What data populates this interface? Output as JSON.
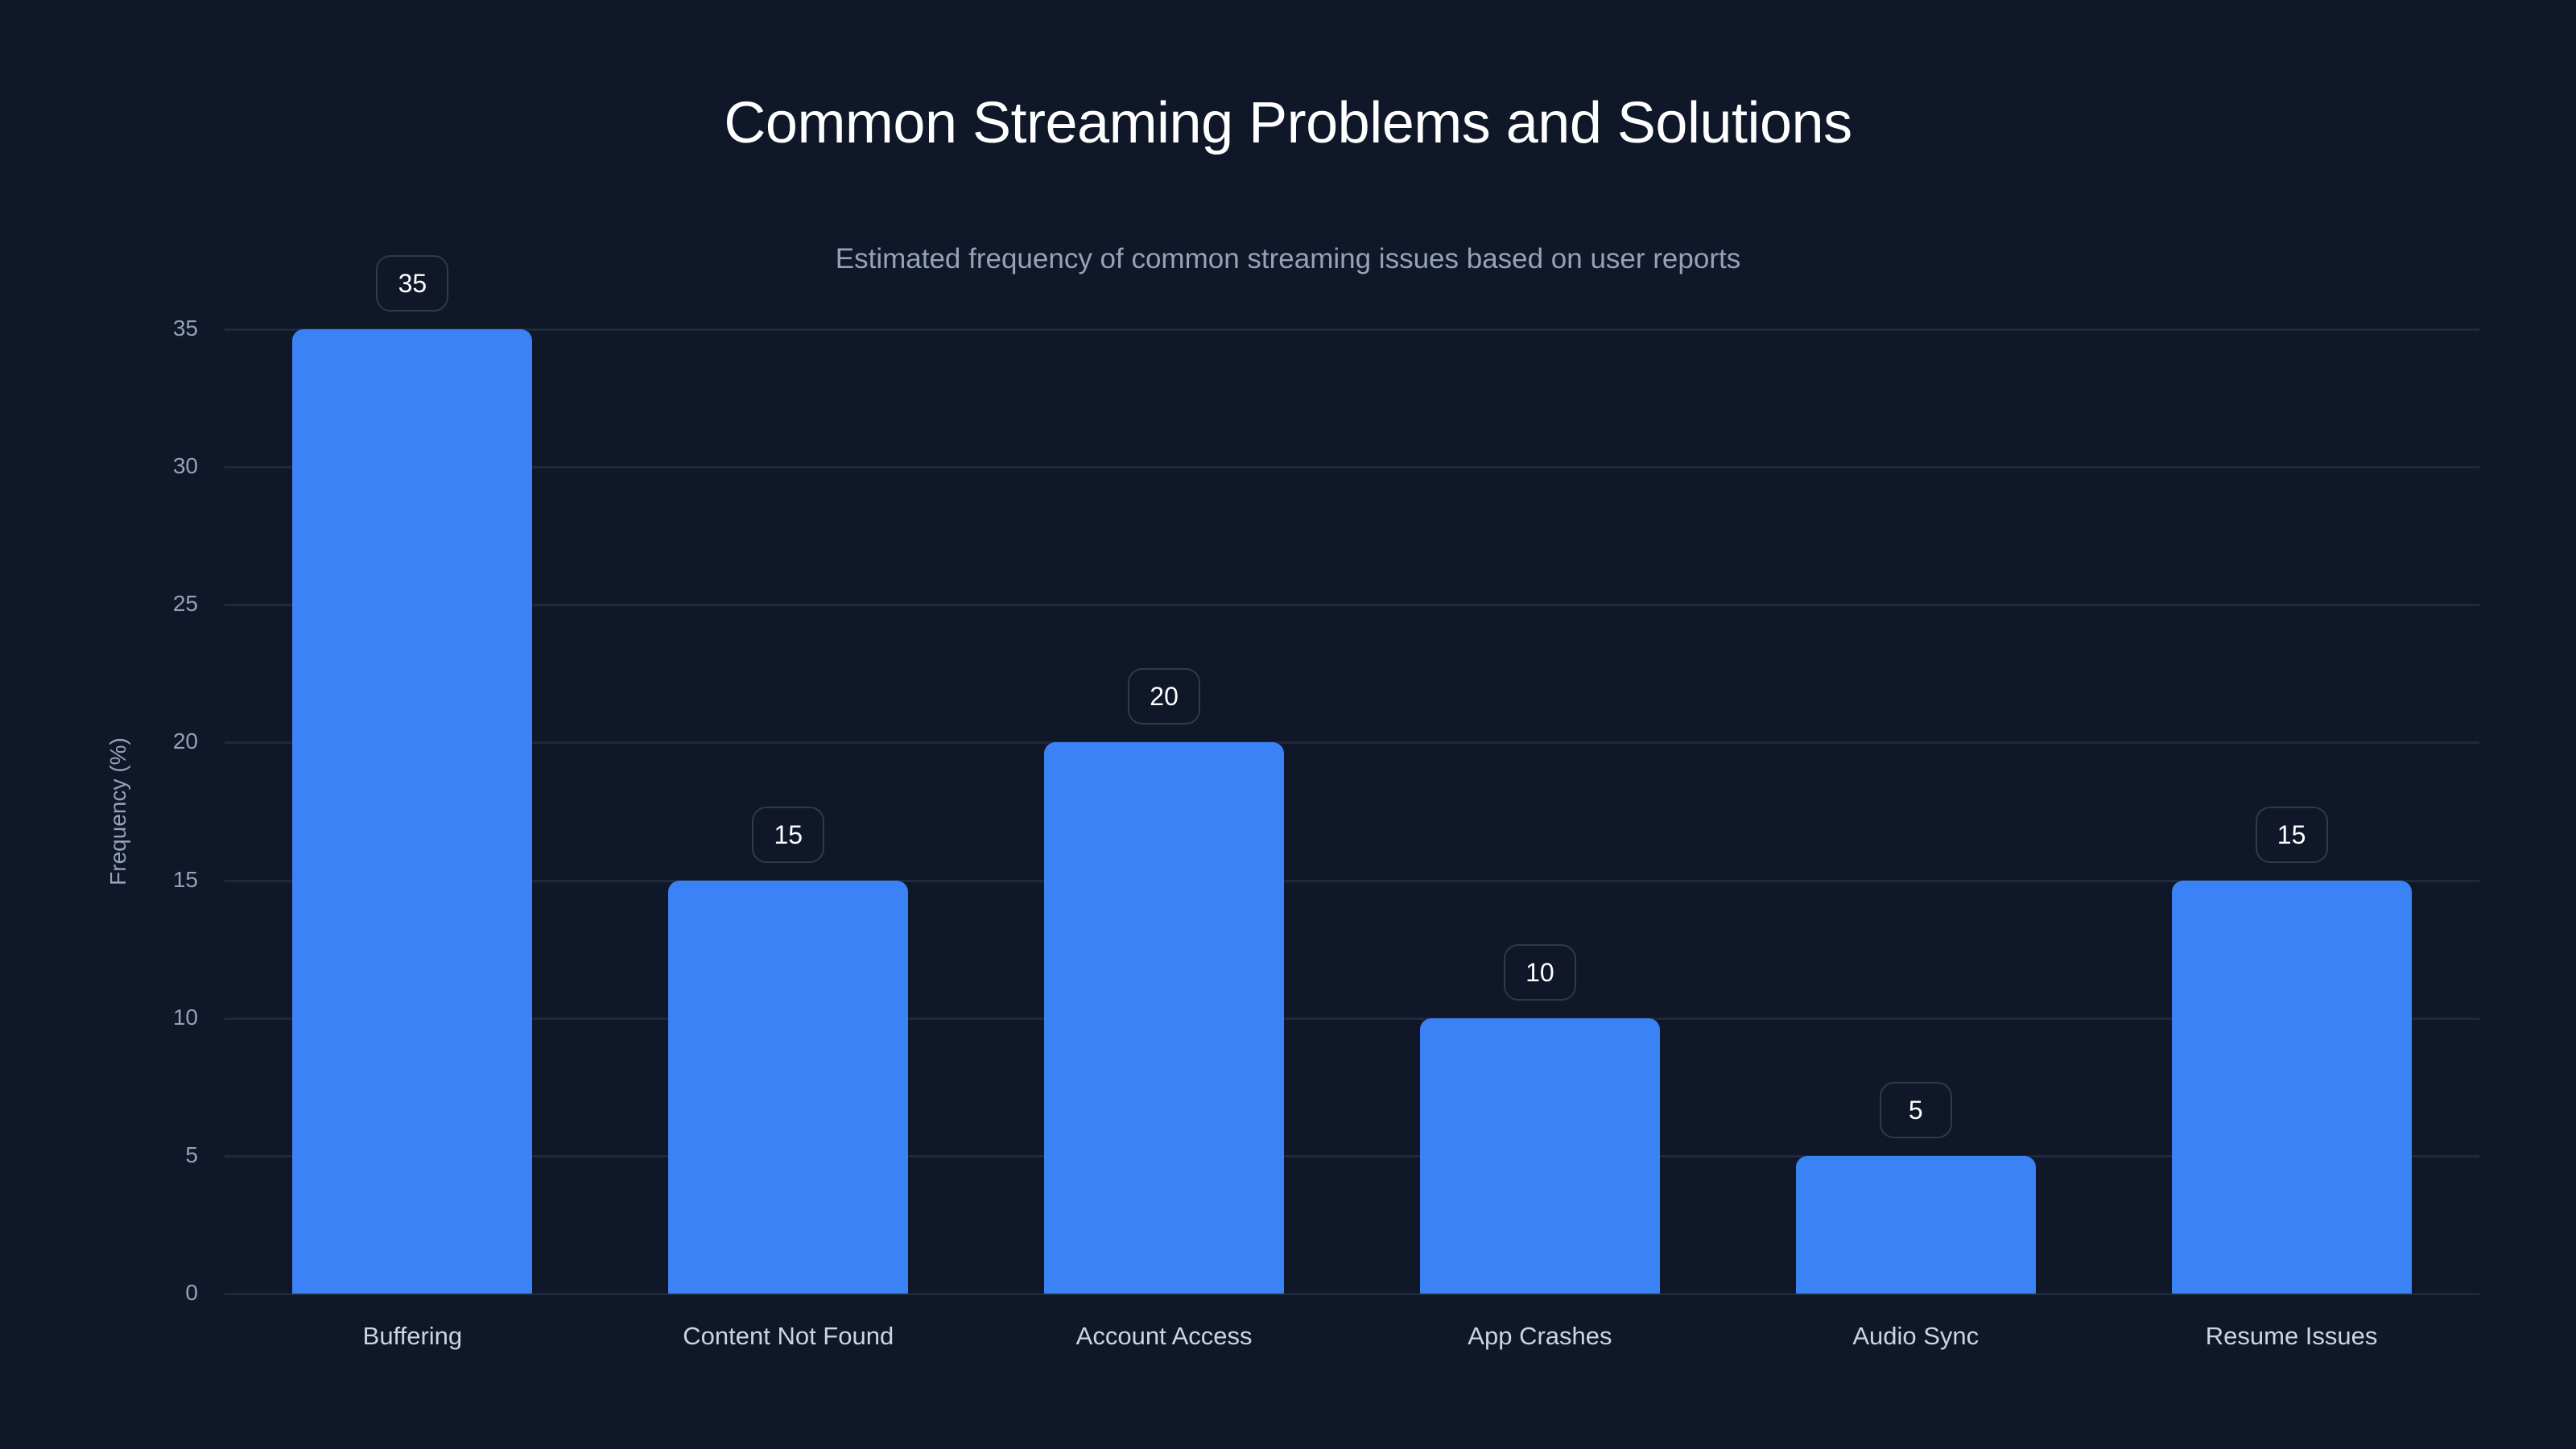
{
  "chart": {
    "title": "Common Streaming Problems and Solutions",
    "subtitle": "Estimated frequency of common streaming issues based on user reports",
    "ylabel": "Frequency (%)",
    "yticks": [
      "0",
      "5",
      "10",
      "15",
      "20",
      "25",
      "30",
      "35"
    ],
    "bars": [
      {
        "label": "Buffering",
        "value": "35"
      },
      {
        "label": "Content Not Found",
        "value": "15"
      },
      {
        "label": "Account Access",
        "value": "20"
      },
      {
        "label": "App Crashes",
        "value": "10"
      },
      {
        "label": "Audio Sync",
        "value": "5"
      },
      {
        "label": "Resume Issues",
        "value": "15"
      }
    ],
    "colors": {
      "background": "#0f1729",
      "bar": "#3b82f6",
      "grid": "#1e293b",
      "tick_text": "#94a3b8",
      "category_text": "#cbd5e1",
      "title": "#ffffff"
    }
  },
  "chart_data": {
    "type": "bar",
    "title": "Common Streaming Problems and Solutions",
    "subtitle": "Estimated frequency of common streaming issues based on user reports",
    "categories": [
      "Buffering",
      "Content Not Found",
      "Account Access",
      "App Crashes",
      "Audio Sync",
      "Resume Issues"
    ],
    "values": [
      35,
      15,
      20,
      10,
      5,
      15
    ],
    "xlabel": "",
    "ylabel": "Frequency (%)",
    "ylim": [
      0,
      35
    ],
    "yticks": [
      0,
      5,
      10,
      15,
      20,
      25,
      30,
      35
    ],
    "grid": true,
    "legend": null,
    "data_labels": true
  }
}
